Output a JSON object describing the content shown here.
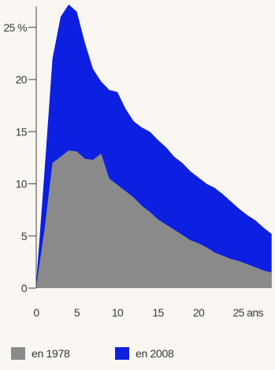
{
  "chart_data": {
    "type": "area",
    "title": "",
    "xlabel": "",
    "ylabel": "",
    "x_unit": "ans",
    "y_unit": "%",
    "xlim": [
      0,
      29
    ],
    "ylim": [
      0,
      27
    ],
    "grid": false,
    "legend_position": "bottom-left",
    "y_ticks": [
      0,
      5,
      10,
      15,
      20,
      25
    ],
    "y_tick_labels": [
      "0",
      "5",
      "10",
      "15",
      "20",
      "25 %"
    ],
    "x_ticks": [
      0,
      5,
      10,
      15,
      20,
      25
    ],
    "x_tick_labels": [
      "0",
      "5",
      "10",
      "15",
      "20",
      "25 ans"
    ],
    "x": [
      0,
      1,
      2,
      3,
      4,
      5,
      6,
      7,
      8,
      9,
      10,
      11,
      12,
      13,
      14,
      15,
      16,
      17,
      18,
      19,
      20,
      21,
      22,
      23,
      24,
      25,
      26,
      27,
      28,
      29
    ],
    "series": [
      {
        "name": "en 1978",
        "color": "#8a8a8a",
        "values": [
          0.2,
          5.5,
          12.0,
          12.6,
          13.2,
          13.1,
          12.4,
          12.3,
          12.9,
          10.5,
          9.9,
          9.3,
          8.7,
          7.9,
          7.3,
          6.6,
          6.1,
          5.6,
          5.1,
          4.6,
          4.3,
          3.9,
          3.4,
          3.1,
          2.8,
          2.6,
          2.3,
          2.0,
          1.7,
          1.5
        ]
      },
      {
        "name": "en 2008",
        "color": "#0d1fe0",
        "values": [
          0.5,
          11.0,
          22.0,
          26.0,
          27.2,
          26.5,
          23.5,
          21.0,
          19.8,
          19.0,
          18.8,
          17.2,
          16.0,
          15.4,
          15.0,
          14.2,
          13.5,
          12.6,
          12.0,
          11.2,
          10.6,
          10.0,
          9.6,
          9.0,
          8.3,
          7.6,
          7.0,
          6.5,
          5.8,
          5.2
        ]
      }
    ]
  },
  "legend": {
    "items": [
      {
        "label": "en 1978",
        "color": "#8a8a8a"
      },
      {
        "label": "en 2008",
        "color": "#0d1fe0"
      }
    ]
  }
}
